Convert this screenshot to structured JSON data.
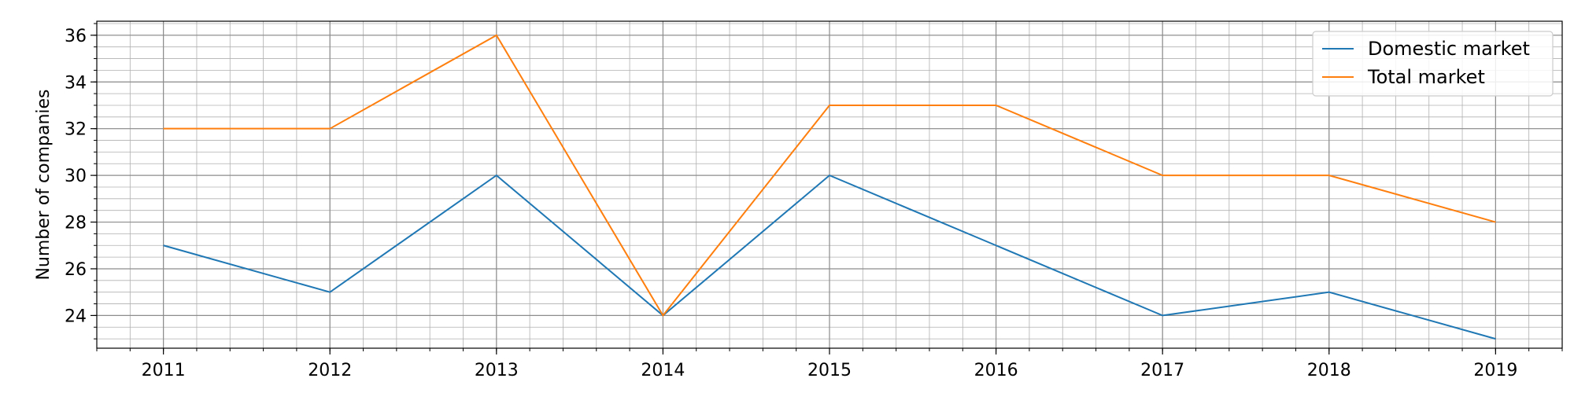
{
  "chart_data": {
    "type": "line",
    "title": "",
    "xlabel": "",
    "ylabel": "Number of companies",
    "x": [
      2011,
      2012,
      2013,
      2014,
      2015,
      2016,
      2017,
      2018,
      2019
    ],
    "xlim": [
      2010.6,
      2019.4
    ],
    "ylim": [
      22.6,
      36.6
    ],
    "yticks": [
      24,
      26,
      28,
      30,
      32,
      34,
      36
    ],
    "x_minor_step": 0.2,
    "y_minor_step": 0.5,
    "grid": true,
    "grid_minor": true,
    "legend_position": "top-right",
    "series": [
      {
        "name": "Domestic market",
        "color": "#1f77b4",
        "values": [
          27,
          25,
          30,
          24,
          30,
          27,
          24,
          25,
          23
        ]
      },
      {
        "name": "Total market",
        "color": "#ff7f0e",
        "values": [
          32,
          32,
          36,
          24,
          33,
          33,
          30,
          30,
          28
        ]
      }
    ]
  }
}
